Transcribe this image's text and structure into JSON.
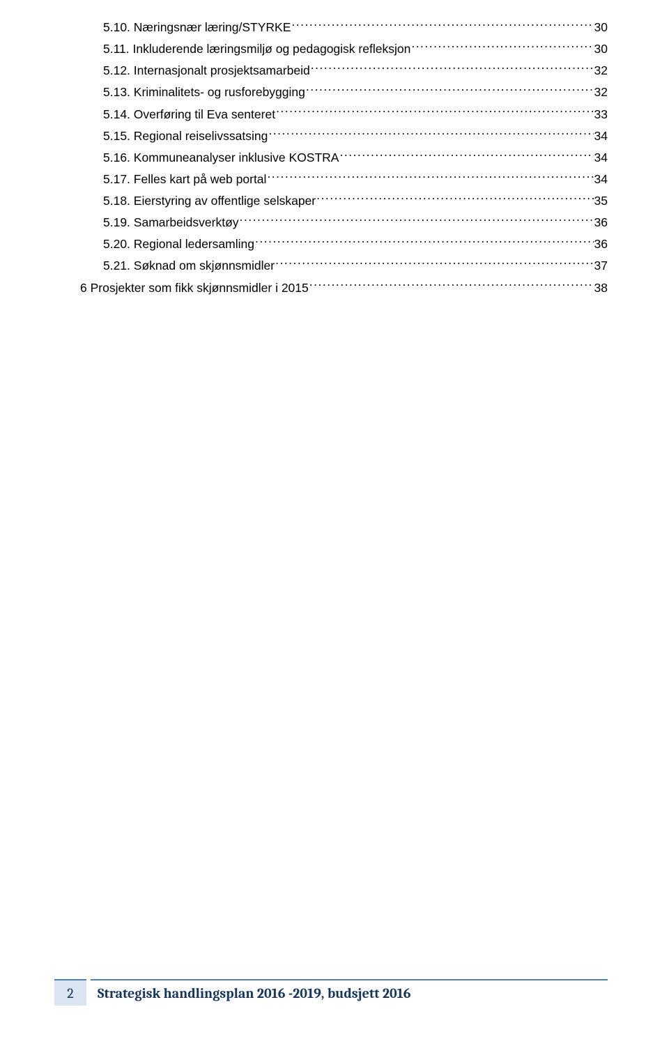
{
  "toc": [
    {
      "indent": "sub",
      "label": "5.10. Næringsnær læring/STYRKE",
      "page": "30"
    },
    {
      "indent": "sub",
      "label": "5.11. Inkluderende læringsmiljø og pedagogisk refleksjon",
      "page": "30"
    },
    {
      "indent": "sub",
      "label": "5.12. Internasjonalt prosjektsamarbeid",
      "page": "32"
    },
    {
      "indent": "sub",
      "label": "5.13. Kriminalitets- og rusforebygging",
      "page": "32"
    },
    {
      "indent": "sub",
      "label": "5.14. Overføring til Eva senteret",
      "page": "33"
    },
    {
      "indent": "sub",
      "label": "5.15. Regional reiselivssatsing",
      "page": "34"
    },
    {
      "indent": "sub",
      "label": "5.16. Kommuneanalyser inklusive KOSTRA",
      "page": "34"
    },
    {
      "indent": "sub",
      "label": "5.17. Felles kart på web portal",
      "page": "34"
    },
    {
      "indent": "sub",
      "label": "5.18. Eierstyring av offentlige selskaper",
      "page": "35"
    },
    {
      "indent": "sub",
      "label": "5.19. Samarbeidsverktøy",
      "page": "36"
    },
    {
      "indent": "sub",
      "label": "5.20. Regional ledersamling",
      "page": "36"
    },
    {
      "indent": "sub",
      "label": "5.21. Søknad om skjønnsmidler",
      "page": "37"
    },
    {
      "indent": "top",
      "label": "6 Prosjekter som fikk skjønnsmidler i 2015",
      "page": "38"
    }
  ],
  "footer": {
    "page_number": "2",
    "title": "Strategisk handlingsplan 2016 -2019, budsjett 2016"
  },
  "colors": {
    "text": "#000000",
    "footer_border": "#4f81bd",
    "footer_page_bg": "#dbe5f1",
    "footer_text": "#17365d",
    "background": "#ffffff"
  },
  "typography": {
    "body_font": "Arial",
    "body_size_pt": 13,
    "footer_font": "Cambria",
    "footer_size_pt": 15,
    "footer_weight": "bold"
  }
}
